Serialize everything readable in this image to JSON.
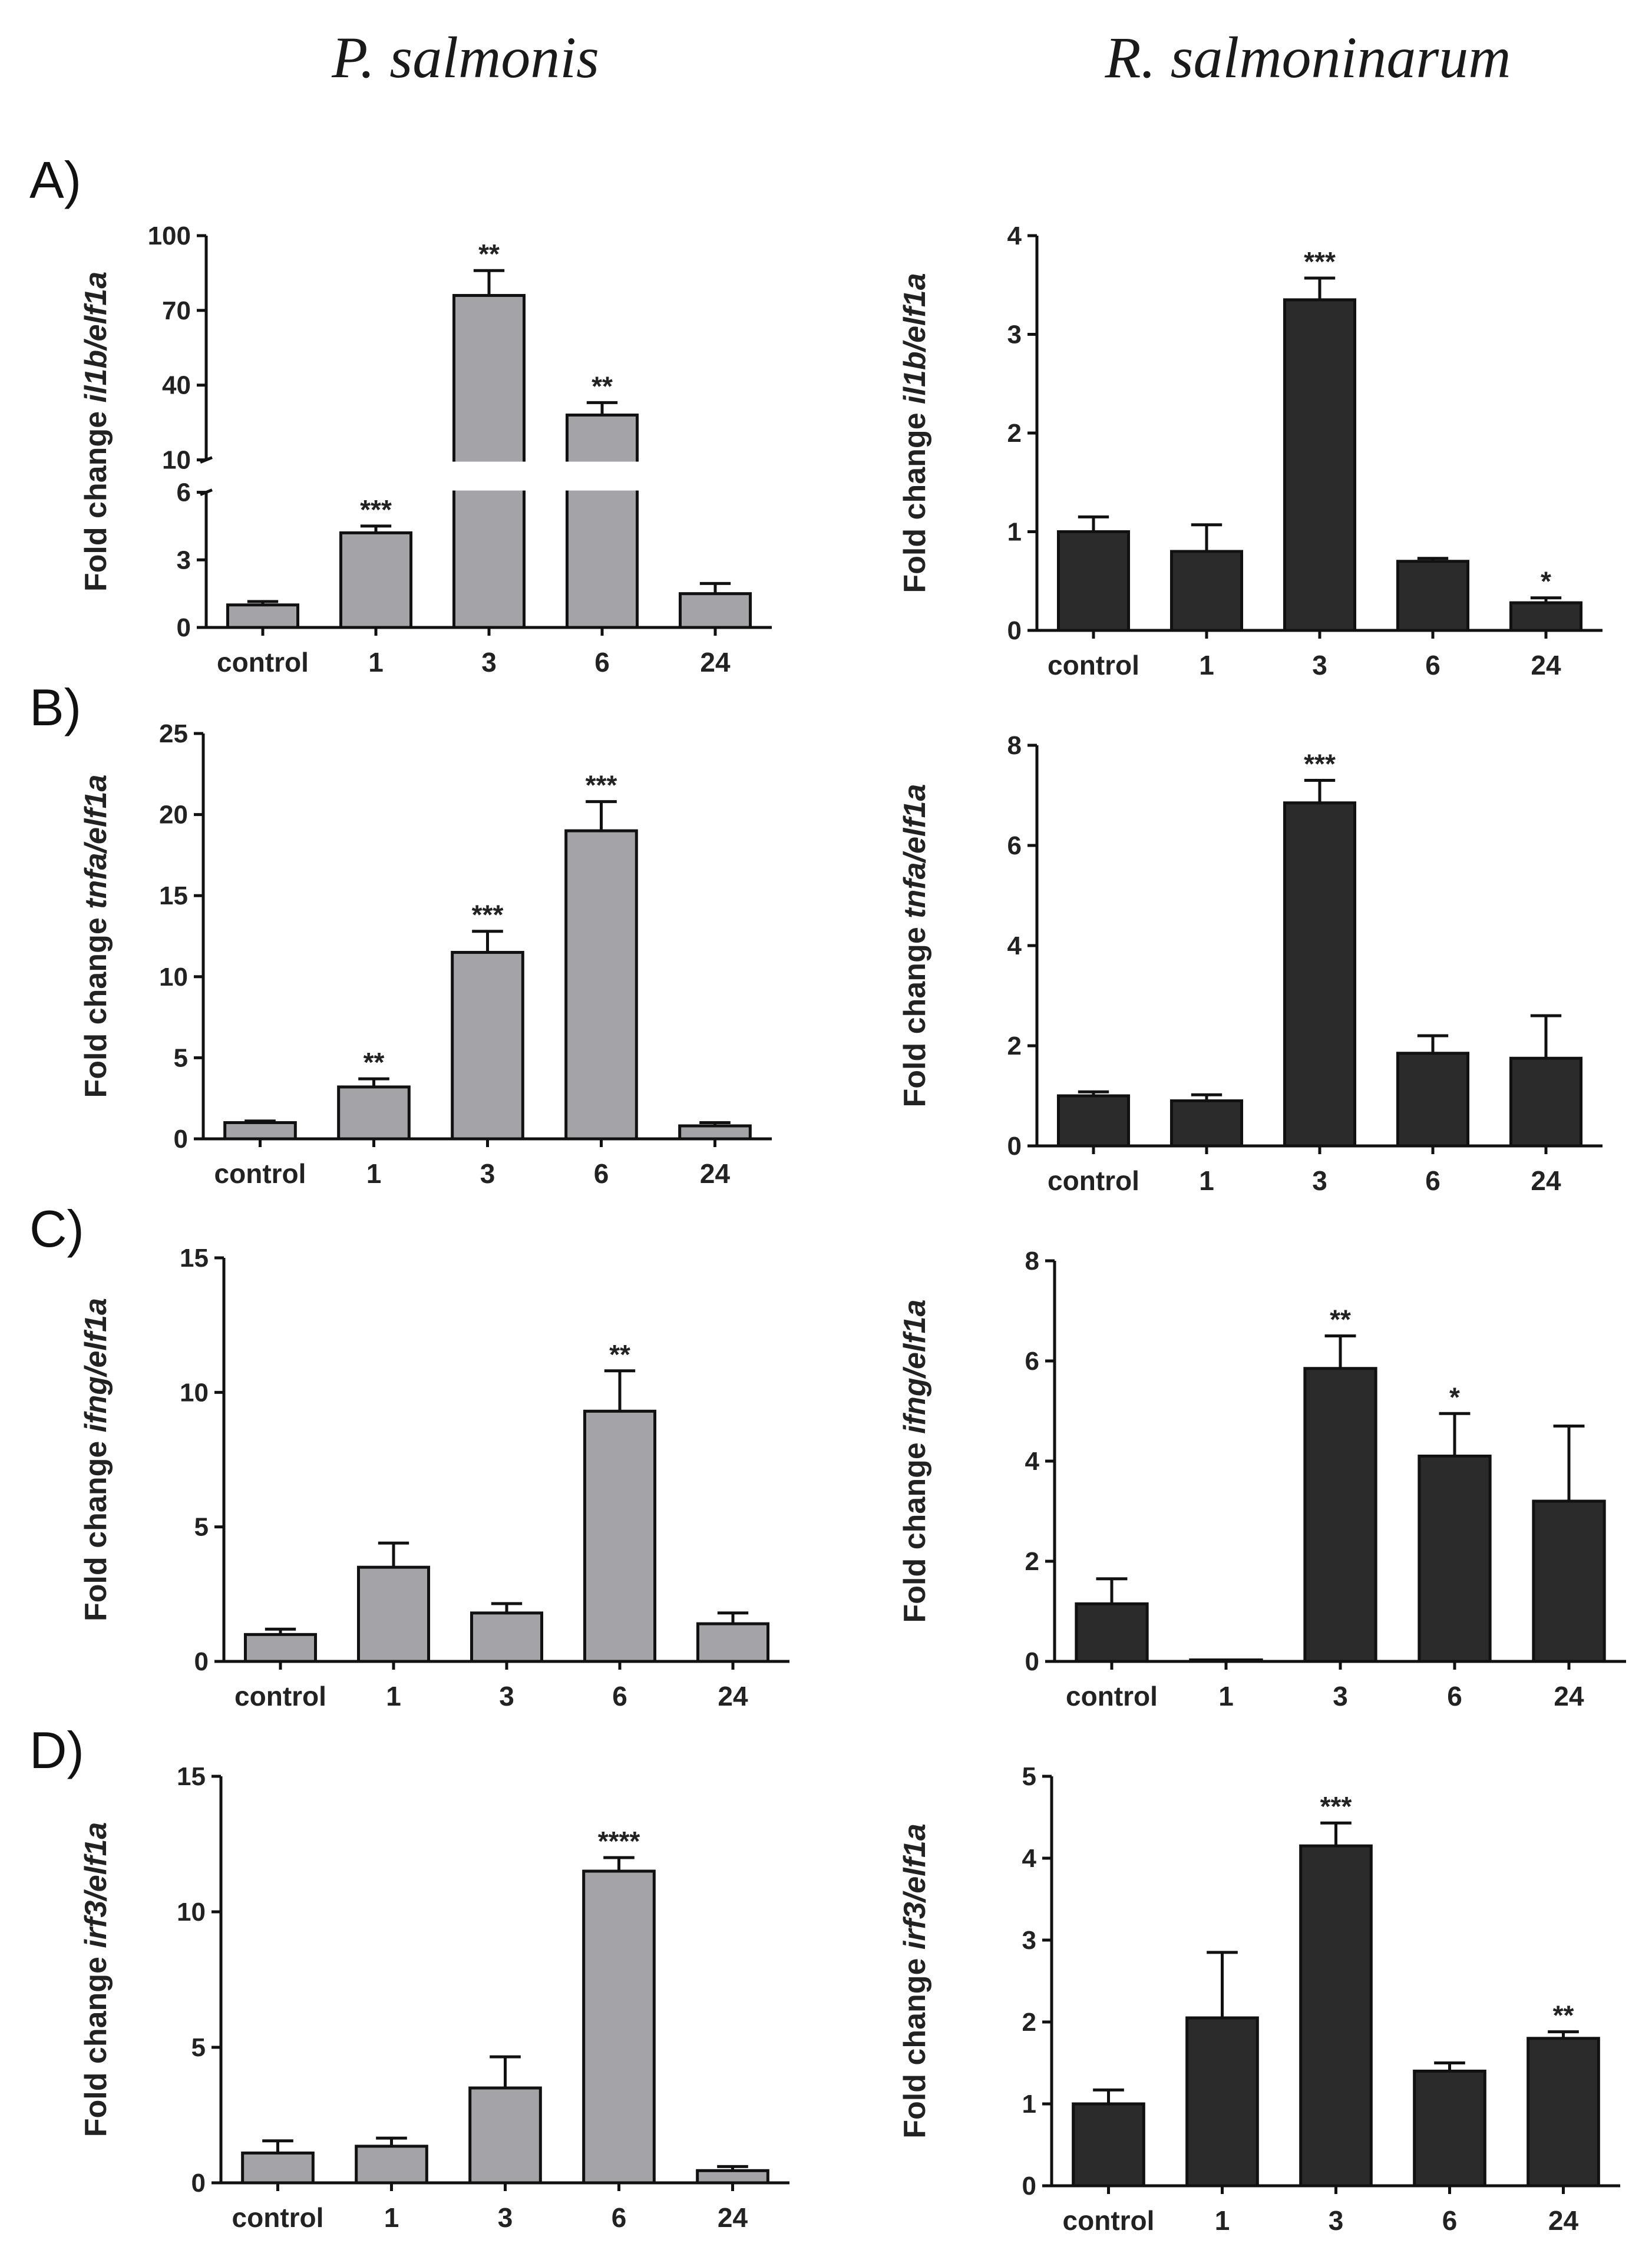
{
  "column_titles": [
    "P. salmonis",
    "R. salmoninarum"
  ],
  "panel_letters": [
    "A)",
    "B)",
    "C)",
    "D)"
  ],
  "colors": {
    "p_salmonis_bar": "#a3a3a8",
    "r_salmoninarum_bar": "#2b2b2b",
    "outline": "#111111"
  },
  "chart_data": [
    {
      "type": "bar",
      "panel": "A",
      "pathogen": "P. salmonis",
      "ylabel_prefix": "Fold change ",
      "ylabel_gene": "il1b/elf1a",
      "categories": [
        "control",
        "1",
        "3",
        "6",
        "24"
      ],
      "values": [
        1.0,
        4.2,
        76,
        28,
        1.5
      ],
      "errors": [
        0.15,
        0.3,
        10,
        5,
        0.45
      ],
      "significance": [
        "",
        "***",
        "**",
        "**",
        ""
      ],
      "axis_break": true,
      "lower_ticks": [
        0,
        3,
        6
      ],
      "upper_ticks": [
        10,
        40,
        70,
        100
      ],
      "ylim_lower": [
        0,
        6
      ],
      "ylim_upper": [
        10,
        100
      ],
      "fill": "#a3a3a8"
    },
    {
      "type": "bar",
      "panel": "A",
      "pathogen": "R. salmoninarum",
      "ylabel_prefix": "Fold change ",
      "ylabel_gene": "il1b/elf1a",
      "categories": [
        "control",
        "1",
        "3",
        "6",
        "24"
      ],
      "values": [
        1.0,
        0.8,
        3.35,
        0.7,
        0.28
      ],
      "errors": [
        0.15,
        0.27,
        0.22,
        0.03,
        0.05
      ],
      "significance": [
        "",
        "",
        "***",
        "",
        "*"
      ],
      "ylim": [
        0,
        4
      ],
      "ticks": [
        0,
        1,
        2,
        3,
        4
      ],
      "fill": "#2b2b2b"
    },
    {
      "type": "bar",
      "panel": "B",
      "pathogen": "P. salmonis",
      "ylabel_prefix": "Fold change ",
      "ylabel_gene": "tnfa/elf1a",
      "categories": [
        "control",
        "1",
        "3",
        "6",
        "24"
      ],
      "values": [
        1.0,
        3.2,
        11.5,
        19.0,
        0.8
      ],
      "errors": [
        0.1,
        0.5,
        1.3,
        1.8,
        0.2
      ],
      "significance": [
        "",
        "**",
        "***",
        "***",
        ""
      ],
      "ylim": [
        0,
        25
      ],
      "ticks": [
        0,
        5,
        10,
        15,
        20,
        25
      ],
      "fill": "#a3a3a8"
    },
    {
      "type": "bar",
      "panel": "B",
      "pathogen": "R. salmoninarum",
      "ylabel_prefix": "Fold change ",
      "ylabel_gene": "tnfa/elf1a",
      "categories": [
        "control",
        "1",
        "3",
        "6",
        "24"
      ],
      "values": [
        1.0,
        0.9,
        6.85,
        1.85,
        1.75
      ],
      "errors": [
        0.08,
        0.12,
        0.45,
        0.35,
        0.85
      ],
      "significance": [
        "",
        "",
        "***",
        "",
        ""
      ],
      "ylim": [
        0,
        8
      ],
      "ticks": [
        0,
        2,
        4,
        6,
        8
      ],
      "fill": "#2b2b2b"
    },
    {
      "type": "bar",
      "panel": "C",
      "pathogen": "P. salmonis",
      "ylabel_prefix": "Fold change ",
      "ylabel_gene": "ifng/elf1a",
      "categories": [
        "control",
        "1",
        "3",
        "6",
        "24"
      ],
      "values": [
        1.0,
        3.5,
        1.8,
        9.3,
        1.4
      ],
      "errors": [
        0.2,
        0.9,
        0.35,
        1.5,
        0.4
      ],
      "significance": [
        "",
        "",
        "",
        "**",
        ""
      ],
      "ylim": [
        0,
        15
      ],
      "ticks": [
        0,
        5,
        10,
        15
      ],
      "fill": "#a3a3a8"
    },
    {
      "type": "bar",
      "panel": "C",
      "pathogen": "R. salmoninarum",
      "ylabel_prefix": "Fold change ",
      "ylabel_gene": "ifng/elf1a",
      "categories": [
        "control",
        "1",
        "3",
        "6",
        "24"
      ],
      "values": [
        1.15,
        0.03,
        5.85,
        4.1,
        3.2
      ],
      "errors": [
        0.5,
        0.01,
        0.65,
        0.85,
        1.5
      ],
      "significance": [
        "",
        "",
        "**",
        "*",
        ""
      ],
      "ylim": [
        0,
        8
      ],
      "ticks": [
        0,
        2,
        4,
        6,
        8
      ],
      "fill": "#2b2b2b"
    },
    {
      "type": "bar",
      "panel": "D",
      "pathogen": "P. salmonis",
      "ylabel_prefix": "Fold change ",
      "ylabel_gene": "irf3/elf1a",
      "categories": [
        "control",
        "1",
        "3",
        "6",
        "24"
      ],
      "values": [
        1.1,
        1.35,
        3.5,
        11.5,
        0.45
      ],
      "errors": [
        0.45,
        0.3,
        1.15,
        0.5,
        0.15
      ],
      "significance": [
        "",
        "",
        "",
        "****",
        ""
      ],
      "ylim": [
        0,
        15
      ],
      "ticks": [
        0,
        5,
        10,
        15
      ],
      "fill": "#a3a3a8"
    },
    {
      "type": "bar",
      "panel": "D",
      "pathogen": "R. salmoninarum",
      "ylabel_prefix": "Fold change ",
      "ylabel_gene": "irf3/elf1a",
      "categories": [
        "control",
        "1",
        "3",
        "6",
        "24"
      ],
      "values": [
        1.0,
        2.05,
        4.15,
        1.4,
        1.8
      ],
      "errors": [
        0.17,
        0.8,
        0.28,
        0.1,
        0.08
      ],
      "significance": [
        "",
        "",
        "***",
        "",
        "**"
      ],
      "ylim": [
        0,
        5
      ],
      "ticks": [
        0,
        1,
        2,
        3,
        4,
        5
      ],
      "fill": "#2b2b2b"
    }
  ]
}
